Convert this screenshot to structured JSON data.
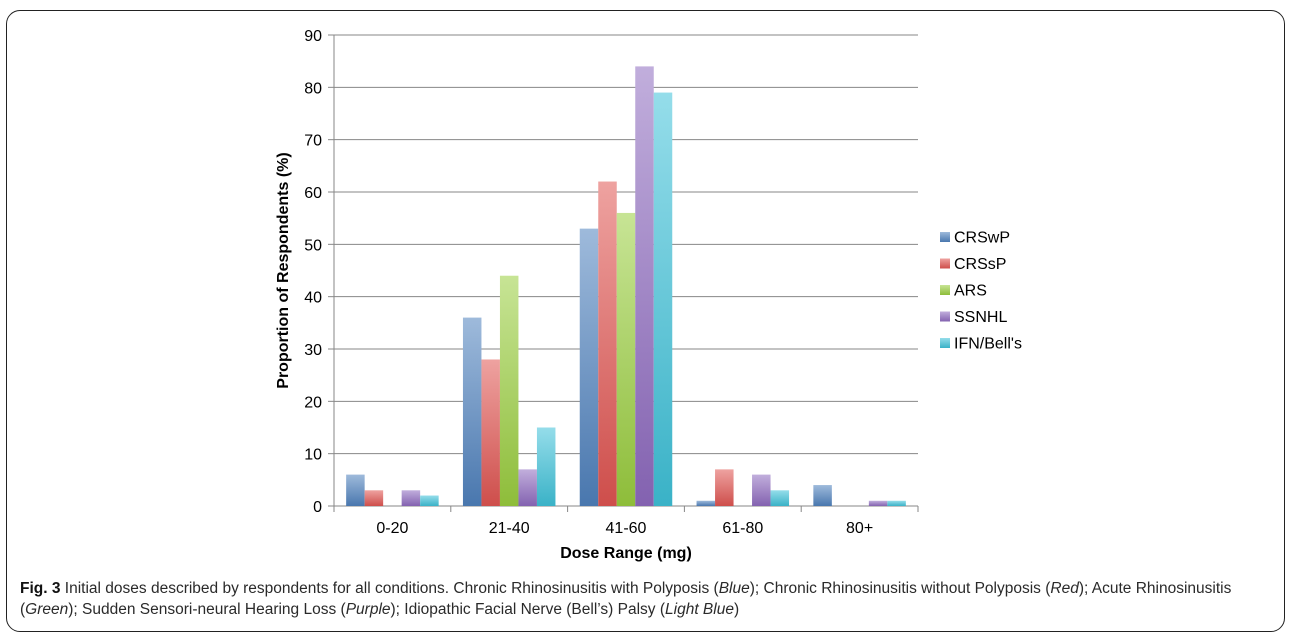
{
  "chart_data": {
    "type": "bar",
    "xlabel": "Dose Range (mg)",
    "ylabel": "Proportion of Respondents (%)",
    "ylim": [
      0,
      90
    ],
    "yticks": [
      "0",
      "10",
      "20",
      "30",
      "40",
      "50",
      "60",
      "70",
      "80",
      "90"
    ],
    "categories": [
      "0-20",
      "21-40",
      "41-60",
      "61-80",
      "80+"
    ],
    "series": [
      {
        "name": "CRSwP",
        "color": "#4f81bd",
        "values": [
          6,
          36,
          53,
          1,
          4
        ]
      },
      {
        "name": "CRSsP",
        "color": "#e05552",
        "values": [
          3,
          28,
          62,
          7,
          0
        ]
      },
      {
        "name": "ARS",
        "color": "#9acd3f",
        "values": [
          0,
          44,
          56,
          0,
          0
        ]
      },
      {
        "name": "SSNHL",
        "color": "#8e6bbf",
        "values": [
          3,
          7,
          84,
          6,
          1
        ]
      },
      {
        "name": "IFN/Bell's",
        "color": "#3fc1d8",
        "values": [
          2,
          15,
          79,
          3,
          1
        ]
      }
    ],
    "grid": true,
    "legend_position": "right"
  },
  "caption": {
    "fig_label": "Fig. 3",
    "t1": " Initial doses described by respondents for all conditions. Chronic Rhinosinusitis with Polyposis (",
    "c1": "Blue",
    "t2": "); Chronic Rhinosinusitis without Polyposis (",
    "c2": "Red",
    "t3": "); Acute Rhinosinusitis (",
    "c3": "Green",
    "t4": "); Sudden Sensori-neural Hearing Loss (",
    "c4": "Purple",
    "t5": "); Idiopathic Facial Nerve (Bell’s) Palsy (",
    "c5": "Light Blue",
    "t6": ")"
  }
}
